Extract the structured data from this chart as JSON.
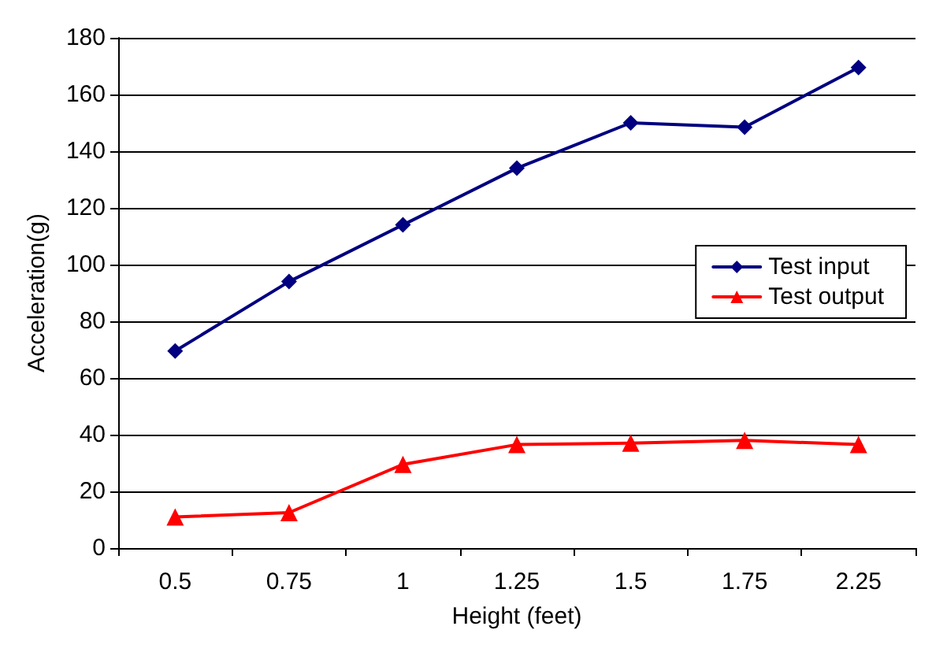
{
  "chart_data": {
    "type": "line",
    "xlabel": "Height (feet)",
    "ylabel": "Acceleration(g)",
    "categories": [
      "0.5",
      "0.75",
      "1",
      "1.25",
      "1.5",
      "1.75",
      "2.25"
    ],
    "series": [
      {
        "name": "Test input",
        "color": "#000080",
        "marker": "diamond",
        "values": [
          69.5,
          94,
          114,
          134,
          150,
          148.5,
          169.5
        ]
      },
      {
        "name": "Test output",
        "color": "#ff0000",
        "marker": "triangle",
        "values": [
          11,
          12.5,
          29.5,
          36.5,
          37,
          38,
          36.5
        ]
      }
    ],
    "ylim": [
      0,
      180
    ],
    "yticks": [
      0,
      20,
      40,
      60,
      80,
      100,
      120,
      140,
      160,
      180
    ],
    "grid": "y",
    "legend": "right",
    "line_style": "solid"
  }
}
